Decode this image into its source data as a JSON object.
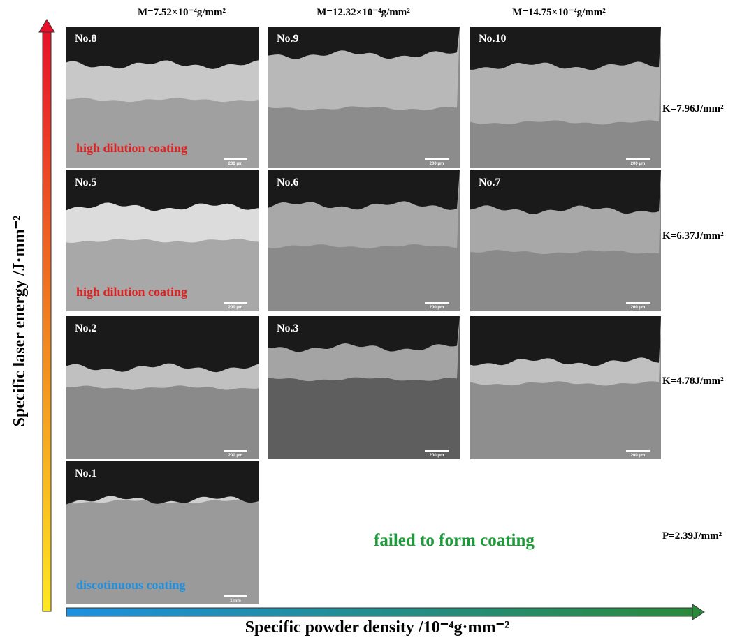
{
  "column_labels": [
    "M=7.52×10⁻⁴g/mm²",
    "M=12.32×10⁻⁴g/mm²",
    "M=14.75×10⁻⁴g/mm²"
  ],
  "row_labels": [
    "K=7.96J/mm²",
    "K=6.37J/mm²",
    "K=4.78J/mm²",
    "P=2.39J/mm²"
  ],
  "y_axis_label": "Specific laser energy /J·mm⁻²",
  "x_axis_label": "Specific powder density /10⁻⁴g·mm⁻²",
  "panels": [
    {
      "label": "No.8",
      "scale": "200 μm",
      "annotation": "high dilution coating"
    },
    {
      "label": "No.9",
      "scale": "200 μm"
    },
    {
      "label": "No.10",
      "scale": "200 μm"
    },
    {
      "label": "No.5",
      "scale": "200 μm",
      "annotation": "high dilution coating"
    },
    {
      "label": "No.6",
      "scale": "200 μm"
    },
    {
      "label": "No.7",
      "scale": "200 μm"
    },
    {
      "label": "No.2",
      "scale": "200 μm"
    },
    {
      "label": "No.3",
      "scale": "200 μm"
    },
    {
      "scale": "200 μm"
    },
    {
      "label": "No.1",
      "scale": "1 mm",
      "annotation": "discotinuous  coating"
    }
  ],
  "failed_note": "failed to form coating"
}
